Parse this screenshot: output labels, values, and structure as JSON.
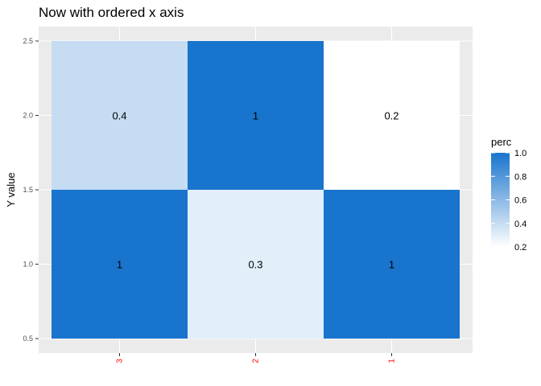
{
  "chart_data": {
    "type": "heatmap",
    "title": "Now with ordered x axis",
    "xlabel": "",
    "ylabel": "Y value",
    "x_categories": [
      "3",
      "2",
      "1"
    ],
    "x_tick_color": "#ff0000",
    "y_ticks": [
      "0.5",
      "1.0",
      "1.5",
      "2.0",
      "2.5"
    ],
    "ylim": [
      0.5,
      2.5
    ],
    "grid": true,
    "cells": [
      {
        "x": "3",
        "y": 1,
        "value": 1,
        "label": "1"
      },
      {
        "x": "2",
        "y": 1,
        "value": 0.3,
        "label": "0.3"
      },
      {
        "x": "1",
        "y": 1,
        "value": 1,
        "label": "1"
      },
      {
        "x": "3",
        "y": 2,
        "value": 0.4,
        "label": "0.4"
      },
      {
        "x": "2",
        "y": 2,
        "value": 1,
        "label": "1"
      },
      {
        "x": "1",
        "y": 2,
        "value": 0.2,
        "label": "0.2"
      }
    ],
    "legend": {
      "title": "perc",
      "placement": "right",
      "ticks": [
        "0.2",
        "0.4",
        "0.6",
        "0.8",
        "1.0"
      ],
      "range": [
        0.2,
        1.0
      ],
      "low_color": "#ffffff",
      "high_color": "#1874cd"
    },
    "panel_background": "#ebebeb",
    "grid_color": "#ffffff"
  }
}
